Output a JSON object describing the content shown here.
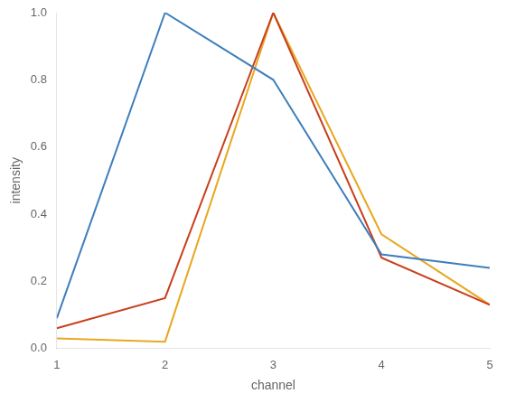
{
  "chart_data": {
    "type": "line",
    "x": [
      1,
      2,
      3,
      4,
      5
    ],
    "series": [
      {
        "color": "#3f7fbc",
        "values": [
          0.09,
          1.0,
          0.8,
          0.28,
          0.24
        ]
      },
      {
        "color": "#c8401e",
        "values": [
          0.06,
          0.15,
          1.0,
          0.27,
          0.13
        ]
      },
      {
        "color": "#e8a820",
        "values": [
          0.03,
          0.02,
          1.0,
          0.34,
          0.13
        ]
      }
    ],
    "xlabel": "channel",
    "ylabel": "intensity",
    "xlim": [
      1,
      5
    ],
    "ylim": [
      0,
      1.0
    ],
    "xticks": [
      1,
      2,
      3,
      4,
      5
    ],
    "yticks": [
      {
        "value": 0,
        "label": "0.0"
      },
      0.2,
      0.4,
      0.6,
      0.8,
      {
        "value": 1.0,
        "label": "1.0"
      }
    ],
    "grid": false
  }
}
